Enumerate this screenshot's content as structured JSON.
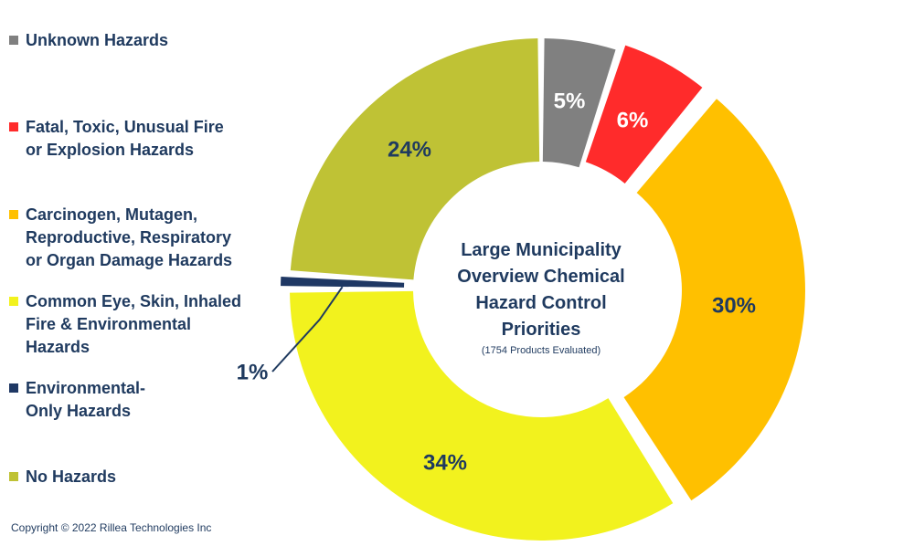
{
  "chart_data": {
    "type": "donut",
    "title_lines": [
      "Large Municipality",
      "Overview Chemical",
      "Hazard Control",
      "Priorities"
    ],
    "subtitle": "(1754 Products Evaluated)",
    "slices": [
      {
        "name": "Unknown Hazards",
        "value": 5,
        "label": "5%",
        "color": "#808080",
        "label_color": "#ffffff"
      },
      {
        "name": "Fatal, Toxic, Unusual Fire or Explosion Hazards",
        "value": 6,
        "label": "6%",
        "color": "#ff2b2b",
        "label_color": "#ffffff"
      },
      {
        "name": "Carcinogen, Mutagen, Reproductive, Respiratory or Organ Damage Hazards",
        "value": 30,
        "label": "30%",
        "color": "#ffc000",
        "label_color": "#1f3a5f"
      },
      {
        "name": "Common Eye, Skin, Inhaled Fire & Environmental Hazards",
        "value": 34,
        "label": "34%",
        "color": "#f2f21e",
        "label_color": "#1f3a5f"
      },
      {
        "name": "Environmental-Only Hazards",
        "value": 1,
        "label": "1%",
        "color": "#1f3864",
        "label_color": "#1f3a5f"
      },
      {
        "name": "No Hazards",
        "value": 24,
        "label": "24%",
        "color": "#bfc235",
        "label_color": "#1f3a5f"
      }
    ]
  },
  "legend": [
    {
      "label": "Unknown Hazards",
      "color": "#808080"
    },
    {
      "label": "Fatal, Toxic, Unusual Fire\nor Explosion Hazards",
      "color": "#ff2b2b"
    },
    {
      "label": "Carcinogen, Mutagen,\nReproductive, Respiratory\nor Organ Damage Hazards",
      "color": "#ffc000"
    },
    {
      "label": "Common Eye, Skin, Inhaled\nFire & Environmental\nHazards",
      "color": "#f2f21e"
    },
    {
      "label": "Environmental-\nOnly Hazards",
      "color": "#1f3864"
    },
    {
      "label": "No Hazards",
      "color": "#bfc235"
    }
  ],
  "copyright": "Copyright © 2022 Rillea Technologies Inc"
}
